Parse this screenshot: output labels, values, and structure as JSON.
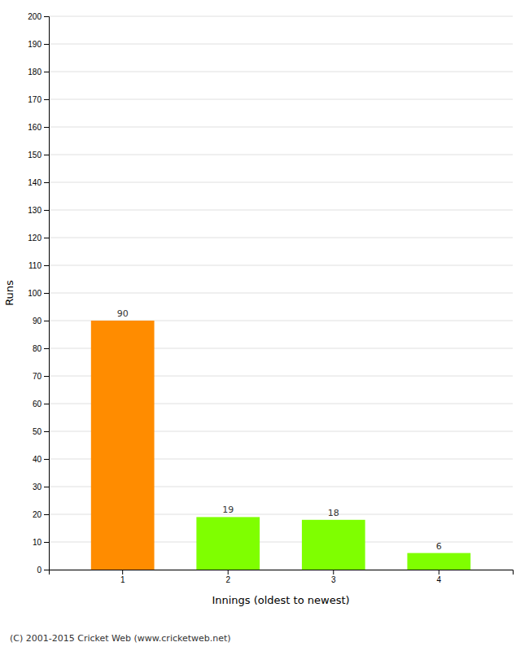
{
  "chart_data": {
    "type": "bar",
    "categories": [
      "1",
      "2",
      "3",
      "4"
    ],
    "values": [
      90,
      19,
      18,
      6
    ],
    "colors": [
      "#ff8c00",
      "#7fff00",
      "#7fff00",
      "#7fff00"
    ],
    "xlabel": "Innings (oldest to newest)",
    "ylabel": "Runs",
    "ylim": [
      0,
      200
    ],
    "yticks": [
      0,
      10,
      20,
      30,
      40,
      50,
      60,
      70,
      80,
      90,
      100,
      110,
      120,
      130,
      140,
      150,
      160,
      170,
      180,
      190,
      200
    ],
    "grid": true,
    "data_labels": true,
    "annotation": "(C) 2001-2015 Cricket Web (www.cricketweb.net)"
  }
}
